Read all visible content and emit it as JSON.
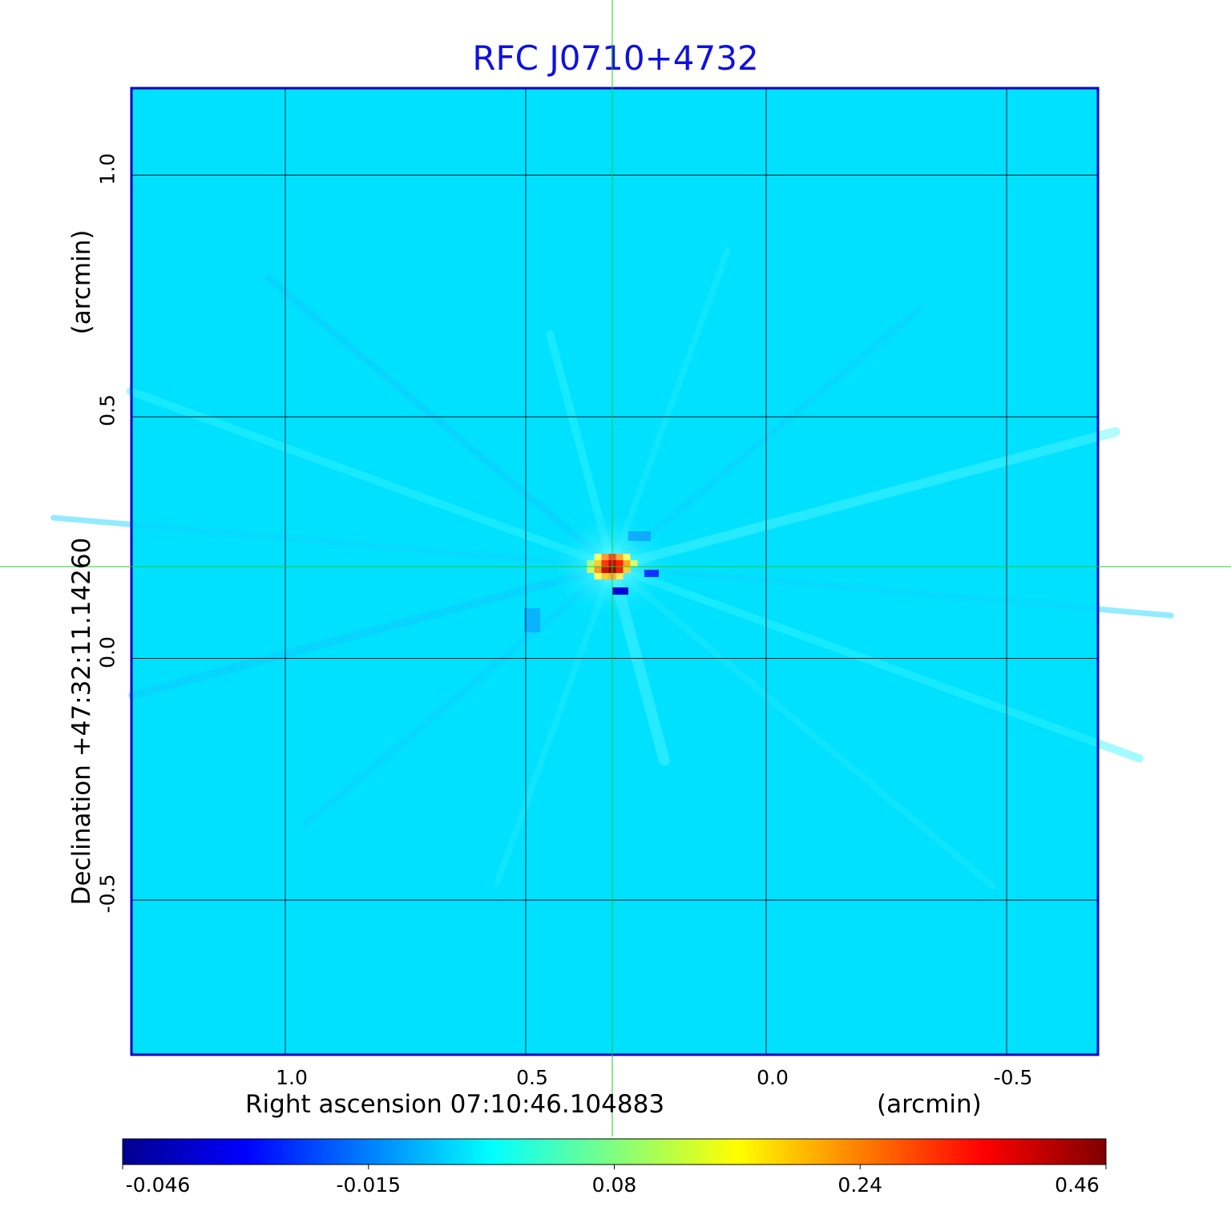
{
  "chart_data": {
    "type": "heatmap",
    "title": "RFC J0710+4732",
    "xlabel": "Right ascension  07:10:46.104883",
    "xunit": "(arcmin)",
    "ylabel": "Declination  +47:32:11.14260",
    "yunit": "(arcmin)",
    "x_ticks": [
      "1.0",
      "0.5",
      "0.0",
      "-0.5"
    ],
    "x_tick_values": [
      1.0,
      0.5,
      0.0,
      -0.5
    ],
    "y_ticks": [
      "1.0",
      "0.5",
      "0.0",
      "-0.5"
    ],
    "y_tick_values": [
      1.0,
      0.5,
      0.0,
      -0.5
    ],
    "xlim": [
      1.32,
      -0.69
    ],
    "ylim": [
      -0.82,
      1.18
    ],
    "grid": true,
    "crosshair": {
      "x": 0.32,
      "y": 0.19,
      "color": "#22cc22"
    },
    "peak": {
      "x": 0.32,
      "y": 0.19,
      "value": 0.46
    },
    "colorbar": {
      "ticks": [
        "-0.046",
        "-0.015",
        "0.08",
        "0.24",
        "0.46"
      ],
      "colormap": [
        "#00008f",
        "#0000ff",
        "#007fff",
        "#00ffff",
        "#7fff7f",
        "#ffff00",
        "#ff7f00",
        "#ff0000",
        "#7f0000"
      ],
      "placement": "bottom"
    },
    "colors": {
      "background_field": "#00e1ff",
      "frame": "#0000c0",
      "title": "#1010e0",
      "grid": "#000000"
    }
  }
}
